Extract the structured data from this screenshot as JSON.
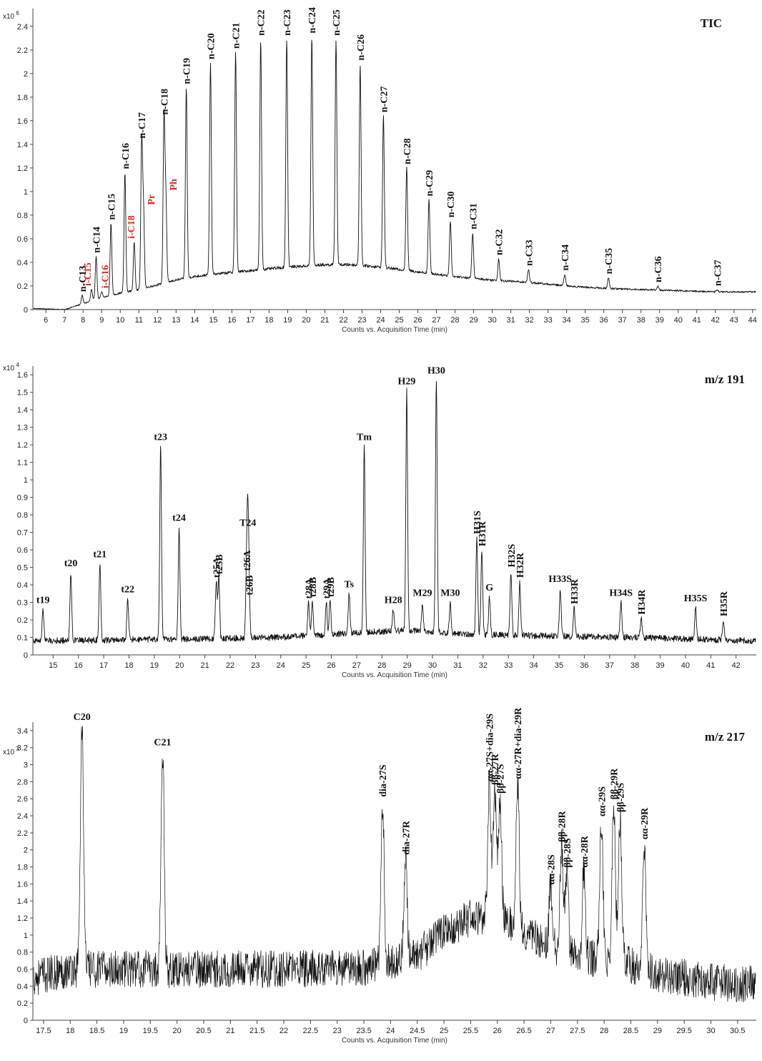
{
  "chart_data": [
    {
      "type": "line",
      "title": "TIC",
      "xlabel": "Counts vs. Acquisition Time (min)",
      "y_multiplier": "x10 6",
      "xlim": [
        5.3,
        44.2
      ],
      "ylim": [
        0,
        2.55
      ],
      "xticks": [
        6,
        7,
        8,
        9,
        10,
        11,
        12,
        13,
        14,
        15,
        16,
        17,
        18,
        19,
        20,
        21,
        22,
        23,
        24,
        25,
        26,
        27,
        28,
        29,
        30,
        31,
        32,
        33,
        34,
        35,
        36,
        37,
        38,
        39,
        40,
        41,
        42,
        43,
        44
      ],
      "yticks": [
        0,
        0.2,
        0.4,
        0.6,
        0.8,
        1,
        1.2,
        1.4,
        1.6,
        1.8,
        2,
        2.2,
        2.4
      ],
      "baseline": [
        [
          5.3,
          0.01
        ],
        [
          7.0,
          0.0
        ],
        [
          8.0,
          0.05
        ],
        [
          9.0,
          0.1
        ],
        [
          10.0,
          0.14
        ],
        [
          11.0,
          0.17
        ],
        [
          12.0,
          0.21
        ],
        [
          13.0,
          0.25
        ],
        [
          14.0,
          0.28
        ],
        [
          15.0,
          0.3
        ],
        [
          17.0,
          0.33
        ],
        [
          19.0,
          0.36
        ],
        [
          21.0,
          0.38
        ],
        [
          22.5,
          0.38
        ],
        [
          24.0,
          0.36
        ],
        [
          26.0,
          0.32
        ],
        [
          28.0,
          0.28
        ],
        [
          30.0,
          0.25
        ],
        [
          32.0,
          0.23
        ],
        [
          34.0,
          0.2
        ],
        [
          36.0,
          0.18
        ],
        [
          38.0,
          0.17
        ],
        [
          40.0,
          0.16
        ],
        [
          42.0,
          0.15
        ],
        [
          44.2,
          0.15
        ]
      ],
      "peaks": [
        {
          "label": "n-C13",
          "x": 7.95,
          "y": 0.12,
          "red": false
        },
        {
          "label": "i-C15",
          "x": 8.45,
          "y": 0.17,
          "red": true
        },
        {
          "label": "n-C14",
          "x": 8.7,
          "y": 0.45,
          "red": false
        },
        {
          "label": "i-C16",
          "x": 9.0,
          "y": 0.15,
          "red": true
        },
        {
          "label": "n-C15",
          "x": 9.5,
          "y": 0.73,
          "red": false
        },
        {
          "label": "n-C16",
          "x": 10.25,
          "y": 1.16,
          "red": false
        },
        {
          "label": "i-C18",
          "x": 10.75,
          "y": 0.57,
          "red": true
        },
        {
          "label": "n-C17",
          "x": 11.15,
          "y": 1.42,
          "red": false
        },
        {
          "label": "Pr",
          "x": 11.25,
          "y": 0.82,
          "red": true
        },
        {
          "label": "n-C18",
          "x": 12.35,
          "y": 1.62,
          "red": false
        },
        {
          "label": "Ph",
          "x": 12.45,
          "y": 0.93,
          "red": true
        },
        {
          "label": "n-C19",
          "x": 13.55,
          "y": 1.88,
          "red": false
        },
        {
          "label": "n-C20",
          "x": 14.85,
          "y": 2.09,
          "red": false
        },
        {
          "label": "n-C21",
          "x": 16.2,
          "y": 2.18,
          "red": false
        },
        {
          "label": "n-C22",
          "x": 17.55,
          "y": 2.29,
          "red": false
        },
        {
          "label": "n-C23",
          "x": 18.95,
          "y": 2.29,
          "red": false
        },
        {
          "label": "n-C24",
          "x": 20.3,
          "y": 2.31,
          "red": false
        },
        {
          "label": "n-C25",
          "x": 21.6,
          "y": 2.29,
          "red": false
        },
        {
          "label": "n-C26",
          "x": 22.9,
          "y": 2.08,
          "red": false
        },
        {
          "label": "n-C27",
          "x": 24.15,
          "y": 1.64,
          "red": false
        },
        {
          "label": "n-C28",
          "x": 25.4,
          "y": 1.2,
          "red": false
        },
        {
          "label": "n-C29",
          "x": 26.6,
          "y": 0.93,
          "red": false
        },
        {
          "label": "n-C30",
          "x": 27.75,
          "y": 0.75,
          "red": false
        },
        {
          "label": "n-C31",
          "x": 28.95,
          "y": 0.65,
          "red": false
        },
        {
          "label": "n-C32",
          "x": 30.35,
          "y": 0.43,
          "red": false
        },
        {
          "label": "n-C33",
          "x": 31.95,
          "y": 0.34,
          "red": false
        },
        {
          "label": "n-C34",
          "x": 33.9,
          "y": 0.3,
          "red": false
        },
        {
          "label": "n-C35",
          "x": 36.25,
          "y": 0.27,
          "red": false
        },
        {
          "label": "n-C36",
          "x": 38.9,
          "y": 0.2,
          "red": false
        },
        {
          "label": "n-C37",
          "x": 42.1,
          "y": 0.17,
          "red": false
        }
      ]
    },
    {
      "type": "line",
      "title": "m/z 191",
      "xlabel": "Counts vs. Acquisition Time (min)",
      "y_multiplier": "x10 4",
      "xlim": [
        14.2,
        42.8
      ],
      "ylim": [
        0,
        1.65
      ],
      "xticks": [
        15,
        16,
        17,
        18,
        19,
        20,
        21,
        22,
        23,
        24,
        25,
        26,
        27,
        28,
        29,
        30,
        31,
        32,
        33,
        34,
        35,
        36,
        37,
        38,
        39,
        40,
        41,
        42
      ],
      "yticks": [
        0,
        0.1,
        0.2,
        0.3,
        0.4,
        0.5,
        0.6,
        0.7,
        0.8,
        0.9,
        1,
        1.1,
        1.2,
        1.3,
        1.4,
        1.5,
        1.6
      ],
      "baseline": [
        [
          14.2,
          0.08
        ],
        [
          20.0,
          0.09
        ],
        [
          24.0,
          0.1
        ],
        [
          27.5,
          0.13
        ],
        [
          29.0,
          0.14
        ],
        [
          31.0,
          0.12
        ],
        [
          34.0,
          0.11
        ],
        [
          38.0,
          0.1
        ],
        [
          42.8,
          0.08
        ]
      ],
      "peaks": [
        {
          "label": "t19",
          "x": 14.6,
          "y": 0.26
        },
        {
          "label": "t20",
          "x": 15.7,
          "y": 0.47
        },
        {
          "label": "t21",
          "x": 16.85,
          "y": 0.52
        },
        {
          "label": "t22",
          "x": 17.95,
          "y": 0.32
        },
        {
          "label": "t23",
          "x": 19.25,
          "y": 1.19
        },
        {
          "label": "t24",
          "x": 19.98,
          "y": 0.73
        },
        {
          "label": "t25A",
          "x": 21.45,
          "y": 0.42
        },
        {
          "label": "t25B",
          "x": 21.55,
          "y": 0.44
        },
        {
          "label": "t26A",
          "x": 22.65,
          "y": 0.46
        },
        {
          "label": "t26B",
          "x": 22.75,
          "y": 0.32
        },
        {
          "label": "T24",
          "x": 22.7,
          "y": 0.7
        },
        {
          "label": "t28A",
          "x": 25.1,
          "y": 0.3
        },
        {
          "label": "t28B",
          "x": 25.25,
          "y": 0.31
        },
        {
          "label": "t29A",
          "x": 25.8,
          "y": 0.3
        },
        {
          "label": "t29B",
          "x": 25.95,
          "y": 0.31
        },
        {
          "label": "Ts",
          "x": 26.7,
          "y": 0.35
        },
        {
          "label": "Tm",
          "x": 27.3,
          "y": 1.19
        },
        {
          "label": "H28",
          "x": 28.45,
          "y": 0.26
        },
        {
          "label": "H29",
          "x": 28.98,
          "y": 1.51
        },
        {
          "label": "M29",
          "x": 29.6,
          "y": 0.3
        },
        {
          "label": "H30",
          "x": 30.15,
          "y": 1.57
        },
        {
          "label": "M30",
          "x": 30.7,
          "y": 0.3
        },
        {
          "label": "H31S",
          "x": 31.75,
          "y": 0.67
        },
        {
          "label": "H31R",
          "x": 31.95,
          "y": 0.6
        },
        {
          "label": "G",
          "x": 32.25,
          "y": 0.33
        },
        {
          "label": "H32S",
          "x": 33.1,
          "y": 0.48
        },
        {
          "label": "H32R",
          "x": 33.45,
          "y": 0.42
        },
        {
          "label": "H33S",
          "x": 35.05,
          "y": 0.38
        },
        {
          "label": "H33R",
          "x": 35.6,
          "y": 0.27
        },
        {
          "label": "H34S",
          "x": 37.45,
          "y": 0.3
        },
        {
          "label": "H34R",
          "x": 38.25,
          "y": 0.21
        },
        {
          "label": "H35S",
          "x": 40.4,
          "y": 0.27
        },
        {
          "label": "H35R",
          "x": 41.5,
          "y": 0.2
        }
      ]
    },
    {
      "type": "line",
      "title": "m/z 217",
      "xlabel": "Counts vs. Acquisition Time (min)",
      "y_multiplier": "x10 3",
      "xlim": [
        17.3,
        30.85
      ],
      "ylim": [
        0,
        3.5
      ],
      "xticks": [
        17.5,
        18,
        18.5,
        19,
        19.5,
        20,
        20.5,
        21,
        21.5,
        22,
        22.5,
        23,
        23.5,
        24,
        24.5,
        25,
        25.5,
        26,
        26.5,
        27,
        27.5,
        28,
        28.5,
        29,
        29.5,
        30,
        30.5
      ],
      "yticks": [
        0,
        0.2,
        0.4,
        0.6,
        0.8,
        1,
        1.2,
        1.4,
        1.6,
        1.8,
        2,
        2.2,
        2.4,
        2.6,
        2.8,
        3,
        3.2,
        3.4
      ],
      "baseline": [
        [
          17.3,
          0.5
        ],
        [
          18.0,
          0.6
        ],
        [
          20.0,
          0.6
        ],
        [
          22.0,
          0.6
        ],
        [
          23.5,
          0.62
        ],
        [
          24.5,
          0.75
        ],
        [
          25.0,
          1.05
        ],
        [
          25.5,
          1.2
        ],
        [
          26.0,
          1.25
        ],
        [
          26.5,
          1.05
        ],
        [
          27.0,
          0.85
        ],
        [
          27.5,
          0.75
        ],
        [
          28.0,
          0.7
        ],
        [
          28.5,
          0.65
        ],
        [
          29.0,
          0.55
        ],
        [
          29.5,
          0.5
        ],
        [
          30.0,
          0.45
        ],
        [
          30.85,
          0.42
        ]
      ],
      "peaks": [
        {
          "label": "C20",
          "x": 18.22,
          "y": 3.45
        },
        {
          "label": "C21",
          "x": 19.73,
          "y": 3.15
        },
        {
          "label": "dia-27S",
          "x": 23.85,
          "y": 2.58
        },
        {
          "label": "dia-27R",
          "x": 24.28,
          "y": 1.9
        },
        {
          "label": "αα-27S+dia-29S",
          "x": 25.85,
          "y": 2.76
        },
        {
          "label": "ββ-27R",
          "x": 25.95,
          "y": 2.72
        },
        {
          "label": "ββ-27S",
          "x": 26.05,
          "y": 2.62
        },
        {
          "label": "αα-27R+dia-29R",
          "x": 26.38,
          "y": 2.79
        },
        {
          "label": "αα-28S",
          "x": 27.0,
          "y": 1.55
        },
        {
          "label": "ββ-28R",
          "x": 27.2,
          "y": 2.05
        },
        {
          "label": "ββ-28S",
          "x": 27.3,
          "y": 1.75
        },
        {
          "label": "αα-28R",
          "x": 27.62,
          "y": 1.75
        },
        {
          "label": "αα-29S",
          "x": 27.95,
          "y": 2.35
        },
        {
          "label": "ββ-29R",
          "x": 28.18,
          "y": 2.55
        },
        {
          "label": "ββ-29S",
          "x": 28.3,
          "y": 2.4
        },
        {
          "label": "αα-29R",
          "x": 28.75,
          "y": 2.08
        }
      ]
    }
  ]
}
